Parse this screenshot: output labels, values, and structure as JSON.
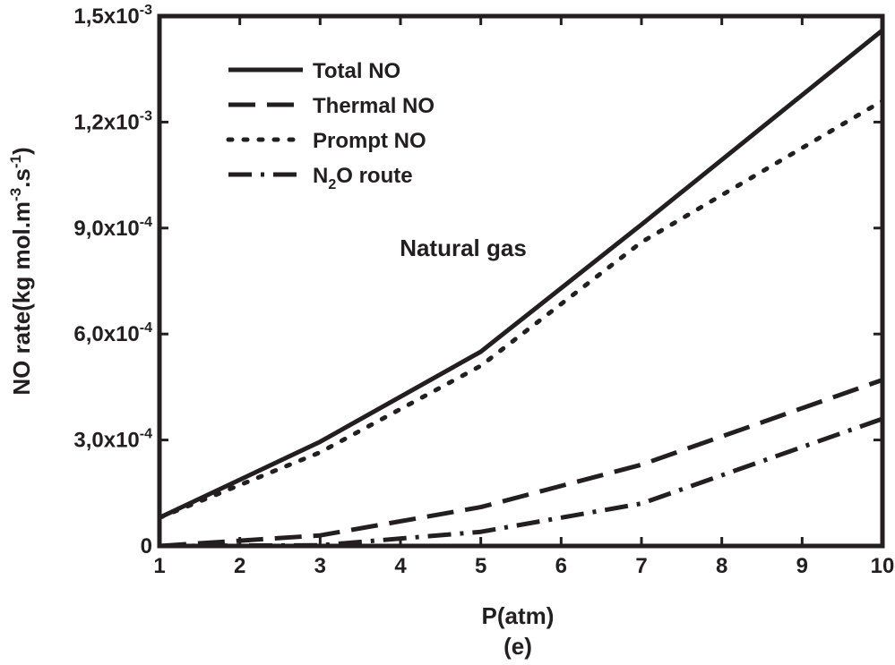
{
  "chart_data": {
    "type": "line",
    "title": "",
    "xlabel": "P(atm)",
    "ylabel": "NO rate(kg mol.m",
    "ylabel_sup1": "-3",
    "ylabel_mid": ".s",
    "ylabel_sup2": "-1",
    "ylabel_end": ")",
    "caption": "(e)",
    "annotation": "Natural gas",
    "xlim": [
      1,
      10
    ],
    "ylim": [
      0,
      0.0015
    ],
    "x_ticks": [
      1,
      2,
      3,
      4,
      5,
      6,
      7,
      8,
      9,
      10
    ],
    "y_ticks": [
      {
        "value": 0,
        "base": "0",
        "exp": ""
      },
      {
        "value": 0.0003,
        "base": "3,0x10",
        "exp": "-4"
      },
      {
        "value": 0.0006,
        "base": "6,0x10",
        "exp": "-4"
      },
      {
        "value": 0.0009,
        "base": "9,0x10",
        "exp": "-4"
      },
      {
        "value": 0.0012,
        "base": "1,2x10",
        "exp": "-3"
      },
      {
        "value": 0.0015,
        "base": "1,5x10",
        "exp": "-3"
      }
    ],
    "legend_position": "top-left",
    "x": [
      1,
      3,
      5,
      7,
      10
    ],
    "series": [
      {
        "name": "Total NO",
        "name_html_parts": [
          "Total NO"
        ],
        "style": "solid",
        "values": [
          8e-05,
          0.000295,
          0.00055,
          0.00091,
          0.00146
        ]
      },
      {
        "name": "Thermal NO",
        "name_html_parts": [
          "Thermal NO"
        ],
        "style": "dashed",
        "values": [
          0.0,
          3e-05,
          0.00011,
          0.00023,
          0.00047
        ]
      },
      {
        "name": "Prompt NO",
        "name_html_parts": [
          "Prompt NO"
        ],
        "style": "dotted",
        "values": [
          8e-05,
          0.000265,
          0.00051,
          0.00086,
          0.00126
        ]
      },
      {
        "name": "N2O route",
        "name_sub_parts": [
          "N",
          "2",
          "O route"
        ],
        "style": "dashdot",
        "values": [
          0.0,
          2e-06,
          4e-05,
          0.00012,
          0.00036
        ]
      }
    ]
  },
  "colors": {
    "ink": "#231f20",
    "background": "#ffffff"
  }
}
